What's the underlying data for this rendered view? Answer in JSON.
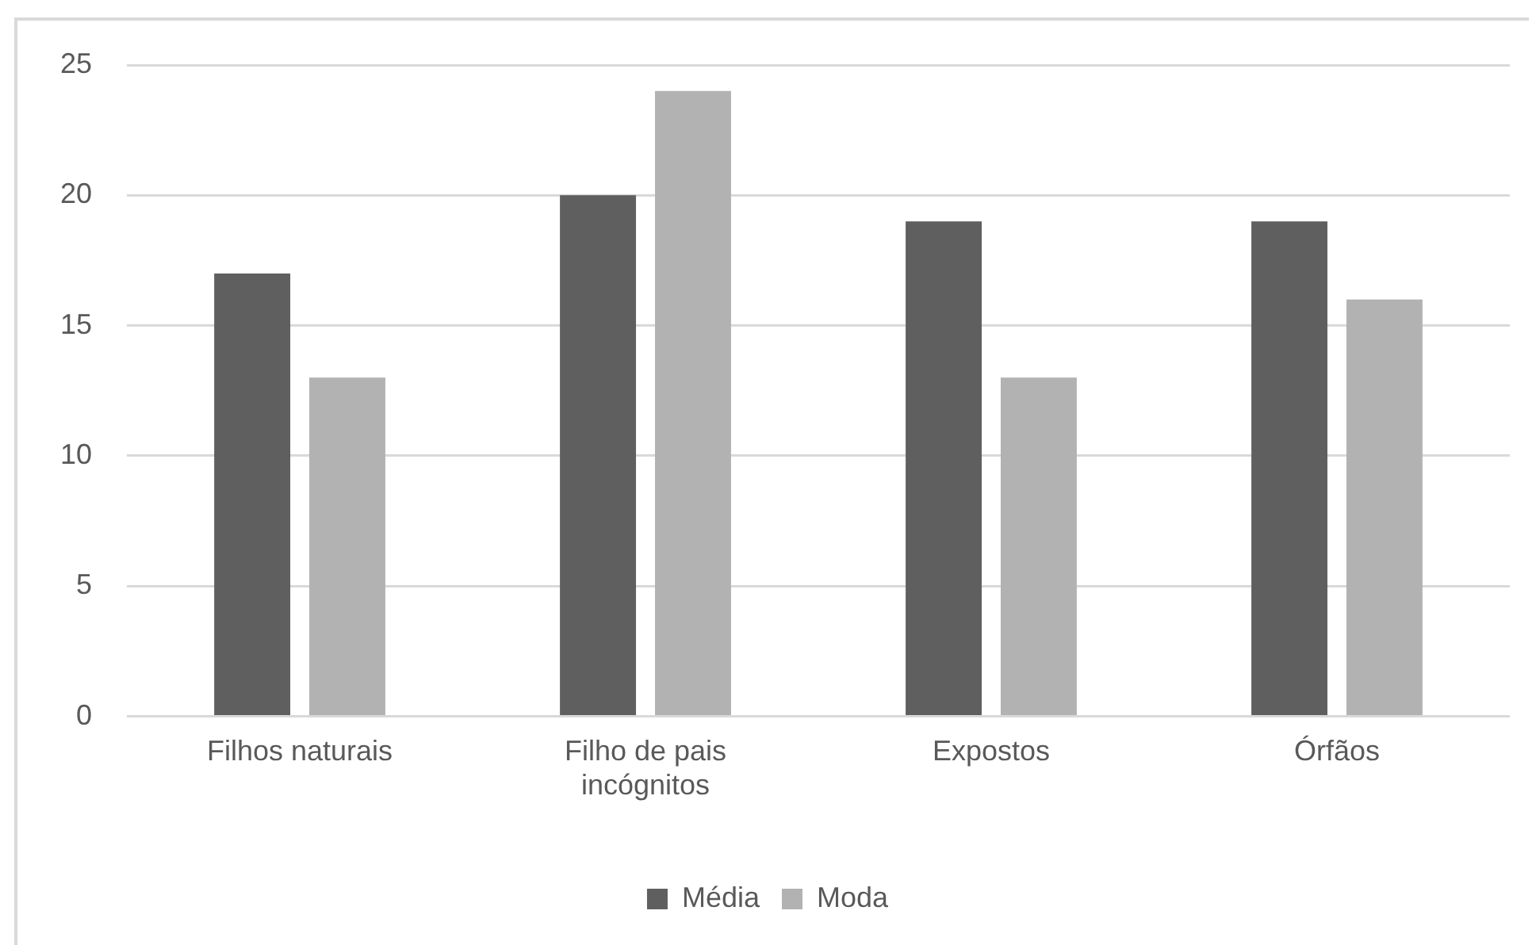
{
  "chart_data": {
    "type": "bar",
    "categories": [
      "Filhos naturais",
      "Filho de pais incógnitos",
      "Expostos",
      "Órfãos"
    ],
    "series": [
      {
        "name": "Média",
        "color": "#5f5f5f",
        "values": [
          17,
          20,
          19,
          19
        ]
      },
      {
        "name": "Moda",
        "color": "#b2b2b2",
        "values": [
          13,
          24,
          13,
          16
        ]
      }
    ],
    "ylim": [
      0,
      25
    ],
    "yticks": [
      0,
      5,
      10,
      15,
      20,
      25
    ],
    "grid": "y",
    "legend": "bottom"
  }
}
